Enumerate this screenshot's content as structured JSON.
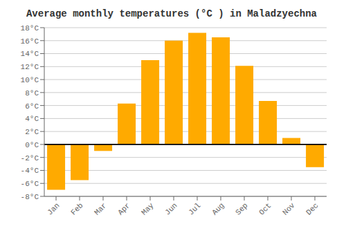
{
  "chart_data": {
    "type": "bar",
    "title": "Average monthly temperatures (°C ) in Maladzyechna",
    "categories": [
      "Jan",
      "Feb",
      "Mar",
      "Apr",
      "May",
      "Jun",
      "Jul",
      "Aug",
      "Sep",
      "Oct",
      "Nov",
      "Dec"
    ],
    "values": [
      -7.0,
      -5.5,
      -1.0,
      6.3,
      13.0,
      16.0,
      17.2,
      16.5,
      12.1,
      6.7,
      1.0,
      -3.5
    ],
    "color": "#FFAA00",
    "ylim": [
      -8,
      18
    ],
    "yticks": [
      {
        "value": -8,
        "label": "-8°C"
      },
      {
        "value": -6,
        "label": "-6°C"
      },
      {
        "value": -4,
        "label": "-4°C"
      },
      {
        "value": -2,
        "label": "-2°C"
      },
      {
        "value": 0,
        "label": "0°C"
      },
      {
        "value": 2,
        "label": "2°C"
      },
      {
        "value": 4,
        "label": "4°C"
      },
      {
        "value": 6,
        "label": "6°C"
      },
      {
        "value": 8,
        "label": "8°C"
      },
      {
        "value": 10,
        "label": "10°C"
      },
      {
        "value": 12,
        "label": "12°C"
      },
      {
        "value": 14,
        "label": "14°C"
      },
      {
        "value": 16,
        "label": "16°C"
      },
      {
        "value": 18,
        "label": "18°C"
      }
    ],
    "grid": true
  }
}
